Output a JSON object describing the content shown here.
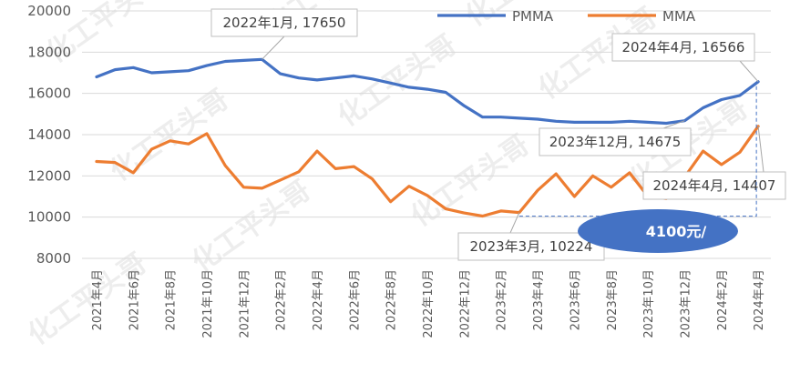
{
  "chart_data": {
    "type": "line",
    "x": [
      "2021年4月",
      "2021年5月",
      "2021年6月",
      "2021年7月",
      "2021年8月",
      "2021年9月",
      "2021年10月",
      "2021年11月",
      "2021年12月",
      "2022年1月",
      "2022年2月",
      "2022年3月",
      "2022年4月",
      "2022年5月",
      "2022年6月",
      "2022年7月",
      "2022年8月",
      "2022年9月",
      "2022年10月",
      "2022年11月",
      "2022年12月",
      "2023年1月",
      "2023年2月",
      "2023年3月",
      "2023年4月",
      "2023年5月",
      "2023年6月",
      "2023年7月",
      "2023年8月",
      "2023年9月",
      "2023年10月",
      "2023年11月",
      "2023年12月",
      "2024年1月",
      "2024年2月",
      "2024年3月",
      "2024年4月"
    ],
    "x_tick_labels": [
      "2021年4月",
      "2021年6月",
      "2021年8月",
      "2021年10月",
      "2021年12月",
      "2022年2月",
      "2022年4月",
      "2022年6月",
      "2022年8月",
      "2022年10月",
      "2022年12月",
      "2023年2月",
      "2023年4月",
      "2023年6月",
      "2023年8月",
      "2023年10月",
      "2023年12月",
      "2024年2月",
      "2024年4月"
    ],
    "ylim": [
      8000,
      20000
    ],
    "y_ticks": [
      "8000",
      "10000",
      "12000",
      "14000",
      "16000",
      "18000",
      "20000"
    ],
    "grid": "horizontal",
    "legend_position": "top",
    "series": [
      {
        "name": "PMMA",
        "color": "#4472c4",
        "values": [
          16800,
          17150,
          17250,
          17000,
          17050,
          17100,
          17350,
          17550,
          17600,
          17650,
          16950,
          16750,
          16650,
          16750,
          16850,
          16700,
          16500,
          16300,
          16200,
          16050,
          15400,
          14850,
          14850,
          14800,
          14750,
          14650,
          14600,
          14600,
          14600,
          14650,
          14600,
          14550,
          14675,
          15300,
          15700,
          15900,
          16566
        ]
      },
      {
        "name": "MMA",
        "color": "#ed7d31",
        "values": [
          12700,
          12650,
          12150,
          13300,
          13700,
          13550,
          14050,
          12500,
          11450,
          11400,
          11800,
          12200,
          13200,
          12350,
          12450,
          11850,
          10750,
          11500,
          11050,
          10400,
          10200,
          10050,
          10300,
          10224,
          11300,
          12100,
          11000,
          12000,
          11450,
          12150,
          11000,
          10900,
          11950,
          13200,
          12550,
          13150,
          14407
        ]
      }
    ],
    "annotations": [
      {
        "text": "2022年1月, 17650",
        "series": 0,
        "index": 9
      },
      {
        "text": "2024年4月, 16566",
        "series": 0,
        "index": 36
      },
      {
        "text": "2023年12月, 14675",
        "series": 0,
        "index": 32
      },
      {
        "text": "2024年4月, 14407",
        "series": 1,
        "index": 36
      },
      {
        "text": "2023年3月, 10224",
        "series": 1,
        "index": 23
      }
    ],
    "badge": {
      "text": "4100元/",
      "color": "#4472c4"
    }
  },
  "watermark": "化工平头哥"
}
